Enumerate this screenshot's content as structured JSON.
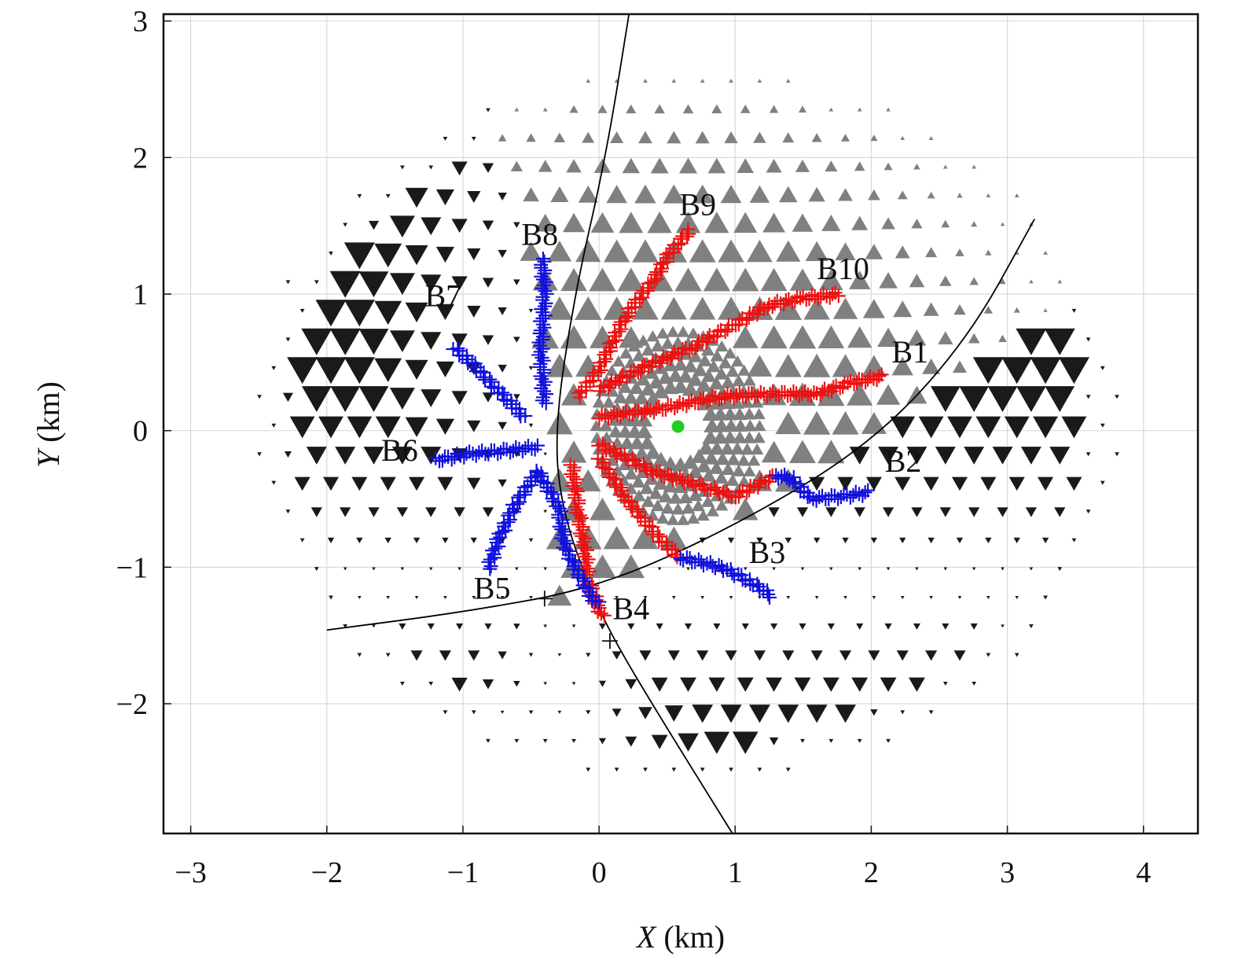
{
  "chart_data": {
    "type": "scatter",
    "xlabel": {
      "var": "X",
      "unit": " (km)"
    },
    "ylabel": {
      "var": "Y",
      "unit": " (km)"
    },
    "xlim": [
      -3.2,
      4.4
    ],
    "ylim": [
      -2.95,
      3.05
    ],
    "x_ticks": [
      {
        "value": -3,
        "label": "−3"
      },
      {
        "value": -2,
        "label": "−2"
      },
      {
        "value": -1,
        "label": "−1"
      },
      {
        "value": 0,
        "label": "0"
      },
      {
        "value": 1,
        "label": "1"
      },
      {
        "value": 2,
        "label": "2"
      },
      {
        "value": 3,
        "label": "3"
      },
      {
        "value": 4,
        "label": "4"
      }
    ],
    "y_ticks": [
      {
        "value": -2,
        "label": "−2"
      },
      {
        "value": -1,
        "label": "−1"
      },
      {
        "value": 0,
        "label": "0"
      },
      {
        "value": 1,
        "label": "1"
      },
      {
        "value": 2,
        "label": "2"
      },
      {
        "value": 3,
        "label": "3"
      }
    ],
    "grid": true,
    "colors": {
      "uplift_triangles": "#808080",
      "subsidence_triangles": "#1a1a1a",
      "path_red": "#ee1111",
      "path_blue": "#1111dd",
      "source": "#22cc22",
      "fault": "#000000"
    },
    "source_point": {
      "x": 0.58,
      "y": 0.03
    },
    "fault_lines": [
      {
        "name": "",
        "points": [
          [
            0.22,
            3.05
          ],
          [
            0.05,
            2.0
          ],
          [
            -0.18,
            1.0
          ],
          [
            -0.33,
            0.0
          ],
          [
            -0.27,
            -0.6
          ],
          [
            -0.05,
            -1.2
          ],
          [
            0.12,
            -1.55
          ],
          [
            0.45,
            -2.1
          ],
          [
            0.98,
            -2.95
          ]
        ]
      },
      {
        "name": "",
        "points": [
          [
            -2.0,
            -1.46
          ],
          [
            -1.0,
            -1.33
          ],
          [
            0.0,
            -1.15
          ],
          [
            1.0,
            -0.7
          ],
          [
            2.0,
            -0.1
          ],
          [
            2.7,
            0.65
          ],
          [
            3.2,
            1.55
          ]
        ]
      }
    ],
    "cross_markers": [
      {
        "x": -0.4,
        "y": -1.23
      },
      {
        "x": 0.08,
        "y": -1.54
      }
    ],
    "branches": [
      {
        "name": "B1",
        "label_pos": {
          "x": 2.15,
          "y": 0.5
        },
        "points": [
          [
            0.0,
            0.1
          ],
          [
            0.4,
            0.15
          ],
          [
            0.9,
            0.25
          ],
          [
            1.3,
            0.27
          ],
          [
            1.6,
            0.27
          ],
          [
            1.85,
            0.35
          ],
          [
            2.1,
            0.4
          ]
        ],
        "colors": [
          "red"
        ]
      },
      {
        "name": "B2",
        "label_pos": {
          "x": 2.1,
          "y": -0.3
        },
        "points": [
          [
            0.0,
            -0.1
          ],
          [
            0.4,
            -0.3
          ],
          [
            0.8,
            -0.42
          ],
          [
            1.0,
            -0.48
          ],
          [
            1.3,
            -0.33
          ],
          [
            1.42,
            -0.35
          ],
          [
            1.55,
            -0.5
          ],
          [
            1.8,
            -0.48
          ],
          [
            2.0,
            -0.45
          ]
        ],
        "colors": [
          "red",
          "red",
          "red",
          "red",
          "red",
          "blue",
          "blue",
          "blue",
          "blue"
        ]
      },
      {
        "name": "B3",
        "label_pos": {
          "x": 1.1,
          "y": -0.97
        },
        "points": [
          [
            0.0,
            -0.2
          ],
          [
            0.2,
            -0.5
          ],
          [
            0.45,
            -0.8
          ],
          [
            0.6,
            -0.93
          ],
          [
            0.9,
            -1.0
          ],
          [
            1.1,
            -1.1
          ],
          [
            1.28,
            -1.22
          ]
        ],
        "colors": [
          "red",
          "red",
          "red",
          "red",
          "blue",
          "blue",
          "blue"
        ]
      },
      {
        "name": "B4",
        "label_pos": {
          "x": 0.1,
          "y": -1.38
        },
        "points": [
          [
            -0.2,
            -0.25
          ],
          [
            -0.15,
            -0.6
          ],
          [
            -0.1,
            -0.9
          ],
          [
            -0.08,
            -1.1
          ],
          [
            0.0,
            -1.3
          ],
          [
            0.03,
            -1.38
          ]
        ],
        "colors": [
          "red"
        ]
      },
      {
        "name": "B5",
        "label_pos": {
          "x": -0.92,
          "y": -1.23
        },
        "points": [
          [
            -0.45,
            -0.3
          ],
          [
            -0.62,
            -0.55
          ],
          [
            -0.74,
            -0.8
          ],
          [
            -0.82,
            -1.03
          ]
        ],
        "colors": [
          "blue"
        ]
      },
      {
        "name": "B5b",
        "label_pos": null,
        "points": [
          [
            -0.45,
            -0.3
          ],
          [
            -0.3,
            -0.55
          ],
          [
            -0.25,
            -0.85
          ],
          [
            -0.15,
            -1.05
          ],
          [
            -0.05,
            -1.22
          ],
          [
            0.0,
            -1.28
          ]
        ],
        "colors": [
          "blue"
        ]
      },
      {
        "name": "B6",
        "label_pos": {
          "x": -1.6,
          "y": -0.22
        },
        "points": [
          [
            -0.45,
            -0.12
          ],
          [
            -0.7,
            -0.15
          ],
          [
            -0.95,
            -0.17
          ],
          [
            -1.22,
            -0.22
          ]
        ],
        "colors": [
          "blue"
        ]
      },
      {
        "name": "B7",
        "label_pos": {
          "x": -1.28,
          "y": 0.91
        },
        "points": [
          [
            -0.55,
            0.1
          ],
          [
            -0.75,
            0.3
          ],
          [
            -0.92,
            0.48
          ],
          [
            -1.08,
            0.62
          ]
        ],
        "colors": [
          "blue"
        ]
      },
      {
        "name": "B8",
        "label_pos": {
          "x": -0.57,
          "y": 1.36
        },
        "points": [
          [
            -0.4,
            0.2
          ],
          [
            -0.43,
            0.6
          ],
          [
            -0.4,
            1.0
          ],
          [
            -0.42,
            1.28
          ]
        ],
        "colors": [
          "blue"
        ]
      },
      {
        "name": "B9",
        "label_pos": {
          "x": 0.59,
          "y": 1.58
        },
        "points": [
          [
            -0.15,
            0.25
          ],
          [
            0.0,
            0.45
          ],
          [
            0.2,
            0.85
          ],
          [
            0.4,
            1.1
          ],
          [
            0.52,
            1.3
          ],
          [
            0.68,
            1.48
          ]
        ],
        "colors": [
          "red"
        ]
      },
      {
        "name": "B10",
        "label_pos": {
          "x": 1.6,
          "y": 1.11
        },
        "points": [
          [
            0.0,
            0.3
          ],
          [
            0.3,
            0.45
          ],
          [
            0.7,
            0.62
          ],
          [
            1.0,
            0.78
          ],
          [
            1.25,
            0.92
          ],
          [
            1.5,
            0.97
          ],
          [
            1.78,
            1.0
          ]
        ],
        "colors": [
          "red"
        ]
      }
    ]
  }
}
